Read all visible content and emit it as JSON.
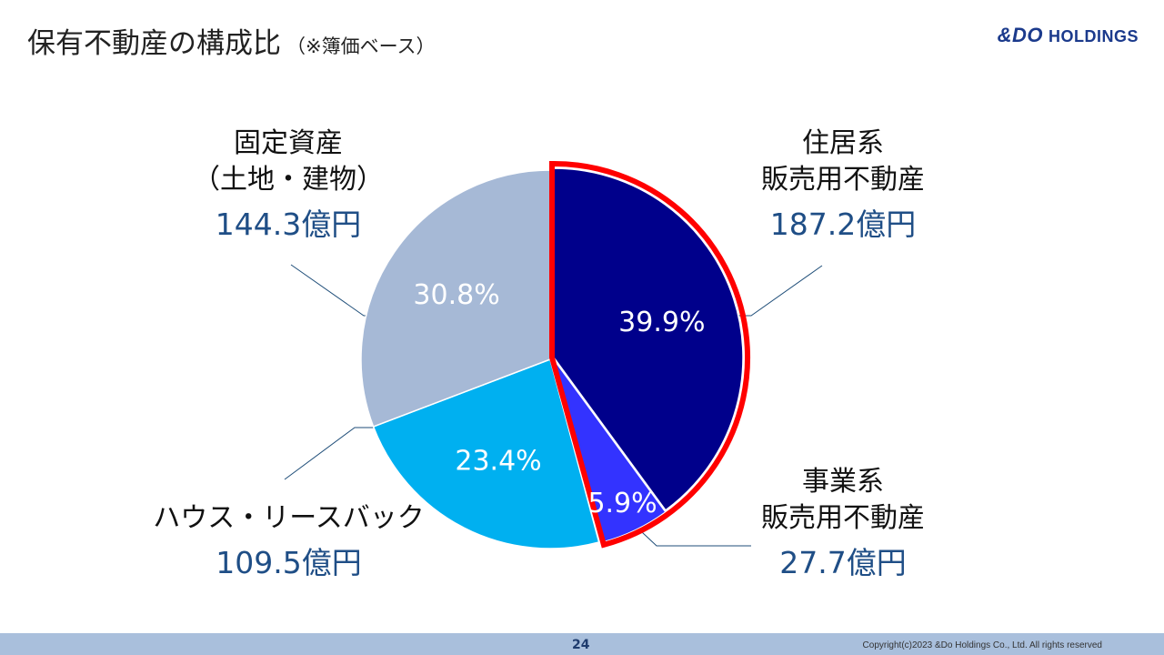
{
  "header": {
    "title": "保有不動産の構成比",
    "subtitle": "（※簿価ベース）",
    "logo_text": "&DO",
    "logo_suffix": "HOLDINGS"
  },
  "chart_data": {
    "type": "pie",
    "unit": "億円",
    "slices": [
      {
        "label_lines": [
          "住居系",
          "販売用不動産"
        ],
        "amount": "187.2億円",
        "value": 187.2,
        "percent": 39.9,
        "percent_text": "39.9%",
        "color": "#00008b",
        "highlighted": true
      },
      {
        "label_lines": [
          "事業系",
          "販売用不動産"
        ],
        "amount": "27.7億円",
        "value": 27.7,
        "percent": 5.9,
        "percent_text": "5.9%",
        "color": "#3333ff",
        "highlighted": true
      },
      {
        "label_lines": [
          "ハウス・リースバック"
        ],
        "amount": "109.5億円",
        "value": 109.5,
        "percent": 23.4,
        "percent_text": "23.4%",
        "color": "#00b0f0",
        "highlighted": false
      },
      {
        "label_lines": [
          "固定資産",
          "（土地・建物）"
        ],
        "amount": "144.3億円",
        "value": 144.3,
        "percent": 30.8,
        "percent_text": "30.8%",
        "color": "#a6b9d6",
        "highlighted": false
      }
    ],
    "highlight_color": "#ff0000",
    "leader_line_color": "#1f4e79"
  },
  "footer": {
    "page_number": "24",
    "copyright": "Copyright(c)2023 &Do Holdings Co., Ltd. All rights reserved"
  }
}
